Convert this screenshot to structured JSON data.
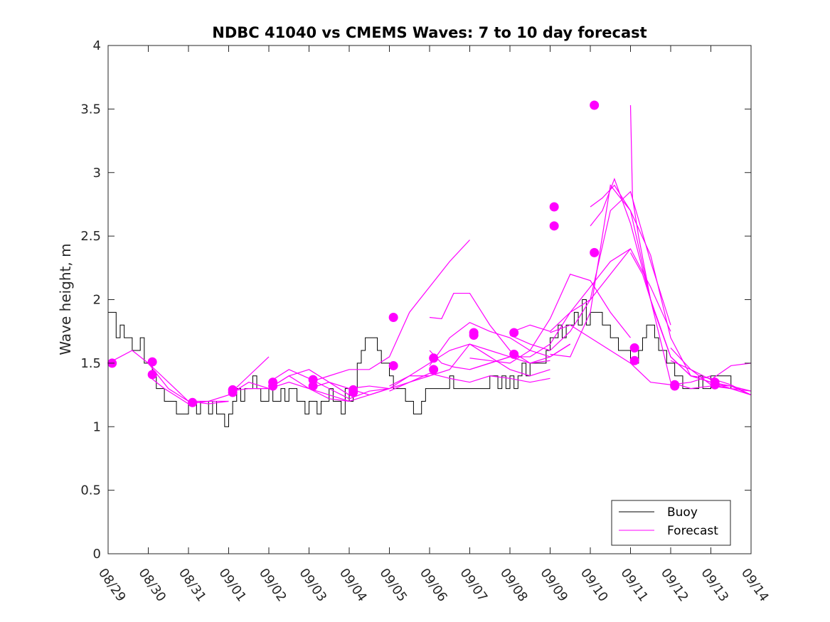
{
  "chart_data": {
    "type": "line",
    "title": "NDBC 41040 vs CMEMS Waves: 7 to 10 day forecast",
    "xlabel": "",
    "ylabel": "Wave height, m",
    "xlim": [
      0,
      16
    ],
    "ylim": [
      0,
      4
    ],
    "x_tick_labels": [
      "08/29",
      "08/30",
      "08/31",
      "09/01",
      "09/02",
      "09/03",
      "09/04",
      "09/05",
      "09/06",
      "09/07",
      "09/08",
      "09/09",
      "09/10",
      "09/11",
      "09/12",
      "09/13",
      "09/14"
    ],
    "y_ticks": [
      0,
      0.5,
      1,
      1.5,
      2,
      2.5,
      3,
      3.5,
      4
    ],
    "y_tick_labels": [
      "0",
      "0.5",
      "1",
      "1.5",
      "2",
      "2.5",
      "3",
      "3.5",
      "4"
    ],
    "legend": {
      "placement": "bottom-right",
      "entries": [
        "Buoy",
        "Forecast"
      ]
    },
    "colors": {
      "buoy": "#000000",
      "forecast": "#ff00ff",
      "axes": "#262626"
    },
    "buoy_x": [
      0,
      0.1,
      0.2,
      0.3,
      0.4,
      0.5,
      0.6,
      0.7,
      0.8,
      0.9,
      1.0,
      1.1,
      1.2,
      1.3,
      1.4,
      1.5,
      1.6,
      1.7,
      1.8,
      1.9,
      2.0,
      2.1,
      2.2,
      2.3,
      2.4,
      2.5,
      2.6,
      2.7,
      2.8,
      2.9,
      3.0,
      3.1,
      3.2,
      3.3,
      3.4,
      3.5,
      3.6,
      3.7,
      3.8,
      3.9,
      4.0,
      4.1,
      4.2,
      4.3,
      4.4,
      4.5,
      4.6,
      4.7,
      4.8,
      4.9,
      5.0,
      5.1,
      5.2,
      5.3,
      5.4,
      5.5,
      5.6,
      5.7,
      5.8,
      5.9,
      6.0,
      6.1,
      6.2,
      6.3,
      6.4,
      6.5,
      6.6,
      6.7,
      6.8,
      6.9,
      7.0,
      7.1,
      7.2,
      7.3,
      7.4,
      7.5,
      7.6,
      7.7,
      7.8,
      7.9,
      8.0,
      8.1,
      8.2,
      8.3,
      8.4,
      8.5,
      8.6,
      8.7,
      8.8,
      8.9,
      9.0,
      9.1,
      9.2,
      9.3,
      9.4,
      9.5,
      9.6,
      9.7,
      9.8,
      9.9,
      10.0,
      10.1,
      10.2,
      10.3,
      10.4,
      10.5,
      10.6,
      10.7,
      10.8,
      10.9,
      11.0,
      11.1,
      11.2,
      11.3,
      11.4,
      11.5,
      11.6,
      11.7,
      11.8,
      11.9,
      12.0,
      12.1,
      12.2,
      12.3,
      12.4,
      12.5,
      12.6,
      12.7,
      12.8,
      12.9,
      13.0,
      13.1,
      13.2,
      13.3,
      13.4,
      13.5,
      13.6,
      13.7,
      13.8,
      13.9,
      14.0,
      14.1,
      14.2,
      14.3,
      14.4,
      14.5,
      14.6,
      14.7,
      14.8,
      14.9,
      15.0,
      15.1,
      15.2,
      15.3,
      15.4,
      15.5
    ],
    "buoy_values": [
      1.9,
      1.9,
      1.7,
      1.8,
      1.7,
      1.7,
      1.6,
      1.6,
      1.7,
      1.5,
      1.5,
      1.4,
      1.3,
      1.3,
      1.2,
      1.2,
      1.2,
      1.1,
      1.1,
      1.1,
      1.2,
      1.2,
      1.1,
      1.2,
      1.2,
      1.1,
      1.2,
      1.1,
      1.1,
      1.0,
      1.1,
      1.2,
      1.3,
      1.2,
      1.3,
      1.3,
      1.4,
      1.3,
      1.2,
      1.2,
      1.3,
      1.2,
      1.2,
      1.3,
      1.2,
      1.3,
      1.3,
      1.2,
      1.2,
      1.1,
      1.2,
      1.2,
      1.1,
      1.2,
      1.2,
      1.3,
      1.2,
      1.2,
      1.1,
      1.3,
      1.2,
      1.3,
      1.5,
      1.6,
      1.7,
      1.7,
      1.7,
      1.6,
      1.5,
      1.5,
      1.4,
      1.3,
      1.3,
      1.3,
      1.2,
      1.2,
      1.1,
      1.1,
      1.2,
      1.3,
      1.3,
      1.3,
      1.3,
      1.3,
      1.3,
      1.4,
      1.3,
      1.3,
      1.3,
      1.3,
      1.3,
      1.3,
      1.3,
      1.3,
      1.3,
      1.4,
      1.4,
      1.3,
      1.4,
      1.3,
      1.4,
      1.3,
      1.4,
      1.5,
      1.4,
      1.5,
      1.5,
      1.5,
      1.5,
      1.6,
      1.7,
      1.7,
      1.8,
      1.7,
      1.8,
      1.8,
      1.9,
      1.8,
      2.0,
      1.8,
      1.9,
      1.9,
      1.9,
      1.8,
      1.8,
      1.7,
      1.7,
      1.6,
      1.6,
      1.6,
      1.5,
      1.5,
      1.6,
      1.7,
      1.8,
      1.8,
      1.7,
      1.6,
      1.6,
      1.5,
      1.5,
      1.4,
      1.4,
      1.3,
      1.3,
      1.3,
      1.3,
      1.4,
      1.3,
      1.3,
      1.4,
      1.4,
      1.4,
      1.4,
      1.4,
      1.3
    ],
    "forecast_series": [
      {
        "x": [
          0,
          0.3,
          0.6,
          1.0,
          1.5,
          2.0
        ],
        "values": [
          1.5,
          1.55,
          1.6,
          1.5,
          1.3,
          1.2
        ]
      },
      {
        "x": [
          1.0,
          1.4,
          1.8,
          2.0,
          2.5,
          3.0
        ],
        "values": [
          1.4,
          1.3,
          1.22,
          1.18,
          1.2,
          1.2
        ]
      },
      {
        "x": [
          1.0,
          1.5,
          2.0,
          2.5,
          3.0
        ],
        "values": [
          1.5,
          1.35,
          1.2,
          1.18,
          1.2
        ]
      },
      {
        "x": [
          2.0,
          2.5,
          3.0,
          3.5,
          4.0
        ],
        "values": [
          1.2,
          1.2,
          1.25,
          1.4,
          1.55
        ]
      },
      {
        "x": [
          3.0,
          3.5,
          4.0,
          4.5,
          5.0,
          5.5,
          6.0
        ],
        "values": [
          1.28,
          1.3,
          1.3,
          1.35,
          1.3,
          1.22,
          1.2
        ]
      },
      {
        "x": [
          3.0,
          3.5,
          4.0,
          4.5,
          5.0,
          5.5,
          6.0
        ],
        "values": [
          1.25,
          1.35,
          1.3,
          1.4,
          1.45,
          1.35,
          1.25
        ]
      },
      {
        "x": [
          4.0,
          4.5,
          5.0,
          5.5,
          6.0,
          6.5,
          7.0
        ],
        "values": [
          1.3,
          1.4,
          1.3,
          1.25,
          1.2,
          1.25,
          1.3
        ]
      },
      {
        "x": [
          4.0,
          4.5,
          5.0,
          5.5,
          6.0,
          6.5,
          7.0
        ],
        "values": [
          1.35,
          1.45,
          1.38,
          1.3,
          1.22,
          1.28,
          1.3
        ]
      },
      {
        "x": [
          5.0,
          5.5,
          6.0,
          6.5,
          7.0,
          7.5,
          8.0,
          8.5,
          9.0
        ],
        "values": [
          1.35,
          1.4,
          1.45,
          1.45,
          1.55,
          1.9,
          2.1,
          2.3,
          2.47
        ]
      },
      {
        "x": [
          5.0,
          5.5,
          6.0,
          6.5,
          7.0,
          7.5,
          8.0
        ],
        "values": [
          1.3,
          1.35,
          1.3,
          1.25,
          1.3,
          1.35,
          1.4
        ]
      },
      {
        "x": [
          6.0,
          6.5,
          7.0,
          7.5,
          8.0,
          8.5,
          9.0,
          9.5,
          10.0
        ],
        "values": [
          1.3,
          1.32,
          1.3,
          1.4,
          1.4,
          1.45,
          1.65,
          1.6,
          1.55
        ]
      },
      {
        "x": [
          7.0,
          7.5,
          8.0,
          8.5,
          9.0,
          9.5,
          10.0,
          10.5,
          11.0
        ],
        "values": [
          1.28,
          1.35,
          1.42,
          1.38,
          1.35,
          1.4,
          1.38,
          1.35,
          1.38
        ]
      },
      {
        "x": [
          7.0,
          7.5,
          8.0,
          8.5,
          9.0,
          9.5,
          10.0,
          10.5,
          11.0
        ],
        "values": [
          1.32,
          1.4,
          1.5,
          1.6,
          1.65,
          1.55,
          1.45,
          1.4,
          1.45
        ]
      },
      {
        "x": [
          8.0,
          8.3,
          8.6,
          9.0,
          9.5,
          10.0,
          10.5,
          11.0,
          11.5
        ],
        "values": [
          1.6,
          1.5,
          1.47,
          1.45,
          1.5,
          1.55,
          1.5,
          1.55,
          1.65
        ]
      },
      {
        "x": [
          8.0,
          8.3,
          8.6,
          9.0,
          9.5,
          10.0,
          10.5,
          11.0
        ],
        "values": [
          1.86,
          1.85,
          2.05,
          2.05,
          1.8,
          1.6,
          1.5,
          1.52
        ]
      },
      {
        "x": [
          8.0,
          8.5,
          9.0,
          9.5,
          10.0,
          10.5,
          11.0,
          11.5
        ],
        "values": [
          1.48,
          1.7,
          1.82,
          1.75,
          1.7,
          1.6,
          1.55,
          1.65
        ]
      },
      {
        "x": [
          9.0,
          9.5,
          10.0,
          10.5,
          11.0,
          11.5,
          12.0,
          12.5,
          13.0
        ],
        "values": [
          1.54,
          1.52,
          1.5,
          1.6,
          1.85,
          2.2,
          2.15,
          1.9,
          1.7
        ]
      },
      {
        "x": [
          9.0,
          9.5,
          10.0,
          10.5,
          11.0,
          11.5,
          12.0,
          12.5,
          13.0
        ],
        "values": [
          1.45,
          1.5,
          1.55,
          1.55,
          1.65,
          1.9,
          2.0,
          2.2,
          2.4
        ]
      },
      {
        "x": [
          10.0,
          10.5,
          11.0,
          11.5,
          12.0,
          12.5,
          13.0,
          13.5,
          14.0
        ],
        "values": [
          1.74,
          1.8,
          1.75,
          1.9,
          2.1,
          2.3,
          2.4,
          2.1,
          1.75
        ]
      },
      {
        "x": [
          10.0,
          10.5,
          11.0,
          11.5,
          12.0,
          12.5,
          13.0,
          13.5,
          14.0
        ],
        "values": [
          1.72,
          1.65,
          1.6,
          1.75,
          2.0,
          2.7,
          2.85,
          2.3,
          1.8
        ]
      },
      {
        "x": [
          11.0,
          11.5,
          12.0,
          12.5,
          13.0,
          13.5,
          14.0,
          14.5,
          15.0
        ],
        "values": [
          1.74,
          1.8,
          1.7,
          1.6,
          1.5,
          1.35,
          1.33,
          1.35,
          1.4
        ]
      },
      {
        "x": [
          11.0,
          11.5,
          12.0,
          12.5,
          13.0,
          13.5,
          14.0,
          14.5,
          15.0
        ],
        "values": [
          1.57,
          1.55,
          1.9,
          2.9,
          2.7,
          2.0,
          1.55,
          1.4,
          1.35
        ]
      },
      {
        "x": [
          12.0,
          12.3,
          12.6,
          13.0,
          13.5,
          14.0,
          14.5,
          15.0,
          15.5,
          16.0
        ],
        "values": [
          2.73,
          2.8,
          2.9,
          2.7,
          2.35,
          1.7,
          1.4,
          1.38,
          1.33,
          1.25
        ]
      },
      {
        "x": [
          12.0,
          12.3,
          12.6,
          13.0,
          13.5,
          14.0,
          14.5,
          15.0,
          15.5,
          16.0
        ],
        "values": [
          2.58,
          2.7,
          2.95,
          2.6,
          2.0,
          1.35,
          1.3,
          1.32,
          1.3,
          1.25
        ]
      },
      {
        "x": [
          13.0,
          13.05,
          13.2,
          13.5,
          14.0,
          14.5,
          15.0,
          15.5,
          16.0
        ],
        "values": [
          3.53,
          2.8,
          2.5,
          2.0,
          1.55,
          1.4,
          1.35,
          1.3,
          1.25
        ]
      },
      {
        "x": [
          13.0,
          13.3,
          13.6,
          14.0,
          14.5,
          15.0,
          15.5,
          16.0
        ],
        "values": [
          2.37,
          2.2,
          1.9,
          1.55,
          1.4,
          1.35,
          1.32,
          1.28
        ]
      },
      {
        "x": [
          14.0,
          14.5,
          15.0,
          15.5,
          16.0
        ],
        "values": [
          1.62,
          1.45,
          1.37,
          1.48,
          1.5
        ]
      },
      {
        "x": [
          14.0,
          14.5,
          15.0,
          15.5,
          16.0
        ],
        "values": [
          1.52,
          1.45,
          1.33,
          1.3,
          1.28
        ]
      },
      {
        "x": [
          15.0,
          15.5,
          16.0
        ],
        "values": [
          1.33,
          1.32,
          1.28
        ]
      },
      {
        "x": [
          15.0,
          15.5,
          16.0
        ],
        "values": [
          1.35,
          1.32,
          1.25
        ]
      }
    ],
    "forecast_start_points": {
      "x": [
        0.1,
        1.1,
        1.1,
        2.1,
        3.1,
        3.1,
        4.1,
        4.1,
        5.1,
        5.1,
        6.1,
        6.1,
        7.1,
        7.1,
        8.1,
        8.1,
        9.1,
        9.1,
        10.1,
        10.1,
        11.1,
        11.1,
        12.1,
        12.1,
        13.1,
        13.1,
        14.1,
        14.1,
        15.1,
        15.1
      ],
      "values": [
        1.5,
        1.41,
        1.51,
        1.19,
        1.27,
        1.29,
        1.35,
        1.32,
        1.37,
        1.32,
        1.27,
        1.29,
        1.86,
        1.48,
        1.54,
        1.45,
        1.74,
        1.72,
        1.74,
        1.57,
        2.73,
        2.58,
        3.53,
        2.37,
        1.62,
        1.52,
        1.33,
        1.32,
        1.35,
        1.33
      ]
    }
  }
}
